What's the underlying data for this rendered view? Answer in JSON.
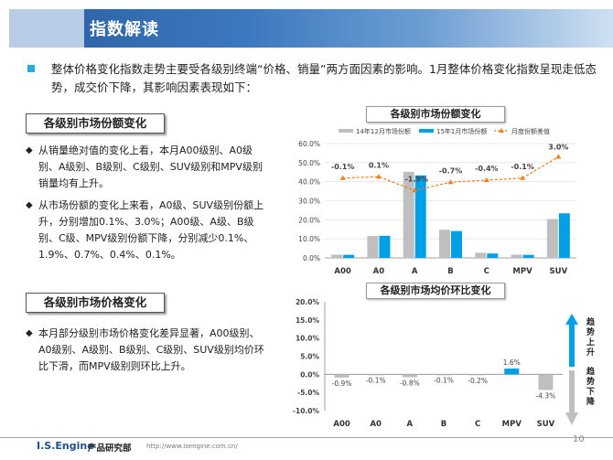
{
  "header": {
    "title": "指数解读"
  },
  "intro": {
    "text": "整体价格变化指数走势主要受各级别终端“价格、销量”两方面因素的影响。1月整体价格变化指数呈现走低态势，成交价下降，其影响因素表现如下："
  },
  "section1": {
    "title": "各级别市场份额变化",
    "paragraphs": [
      "从销量绝对值的变化上看，本月A00级别、A0级别、A级别、B级别、C级别、SUV级别和MPV级别销量均有上升。",
      "从市场份额的变化上来看，A0级、SUV级别份额上升，分别增加0.1%、3.0%；A00级、A级、B级别、C级、MPV级别份额下降，分别减少0.1%、1.9%、0.7%、0.4%、0.1%。"
    ]
  },
  "section2": {
    "title": "各级别市场价格变化",
    "paragraphs": [
      "本月部分级别市场价格变化差异显著，A00级别、A0级别、A级别、B级别、C级别、SUV级别均价环比下滑，而MPV级别则环比上升。"
    ]
  },
  "trend_labels": {
    "up": "趋势上升",
    "down": "趋势下降"
  },
  "footer": {
    "brand": "I.S.Engine",
    "dept": "产品研究部",
    "url": "http://www.isengine.com.cn/",
    "page": "10"
  },
  "colors": {
    "gray": "#bfbfbf",
    "blue": "#00a0e9",
    "orange": "#f07d1b",
    "title_blue": "#2a5e9f"
  },
  "chart_data": [
    {
      "type": "bar",
      "title": "各级别市场份额变化",
      "categories": [
        "A00",
        "A0",
        "A",
        "B",
        "C",
        "MPV",
        "SUV"
      ],
      "series": [
        {
          "name": "14年12月市场份额",
          "values": [
            1.7,
            11.5,
            45.2,
            14.8,
            2.7,
            1.7,
            20.4
          ]
        },
        {
          "name": "15年1月市场份额",
          "values": [
            1.6,
            11.6,
            43.3,
            14.1,
            2.3,
            1.6,
            23.4
          ]
        },
        {
          "name": "月度份额差值",
          "type": "line",
          "values": [
            -0.1,
            0.1,
            -1.9,
            -0.7,
            -0.4,
            -0.1,
            3.0
          ]
        }
      ],
      "data_labels": [
        "-0.1%",
        "0.1%",
        "-1.9%",
        "-0.7%",
        "-0.4%",
        "-0.1%",
        "3.0%"
      ],
      "y_ticks": [
        "0.0%",
        "10.0%",
        "20.0%",
        "30.0%",
        "40.0%",
        "50.0%",
        "60.0%"
      ],
      "ylim": [
        0,
        60
      ],
      "legend": "top"
    },
    {
      "type": "bar",
      "title": "各级别市场均价环比变化",
      "categories": [
        "A00",
        "A0",
        "A",
        "B",
        "C",
        "MPV",
        "SUV"
      ],
      "values": [
        -0.9,
        -0.1,
        -0.8,
        -0.1,
        -0.2,
        1.6,
        -4.3
      ],
      "data_labels": [
        "-0.9%",
        "-0.1%",
        "-0.8%",
        "-0.1%",
        "-0.2%",
        "1.6%",
        "-4.3%"
      ],
      "y_ticks": [
        "-10.0%",
        "-5.0%",
        "0.0%",
        "5.0%",
        "10.0%",
        "15.0%",
        "20.0%"
      ],
      "ylim": [
        -10,
        20
      ]
    }
  ]
}
